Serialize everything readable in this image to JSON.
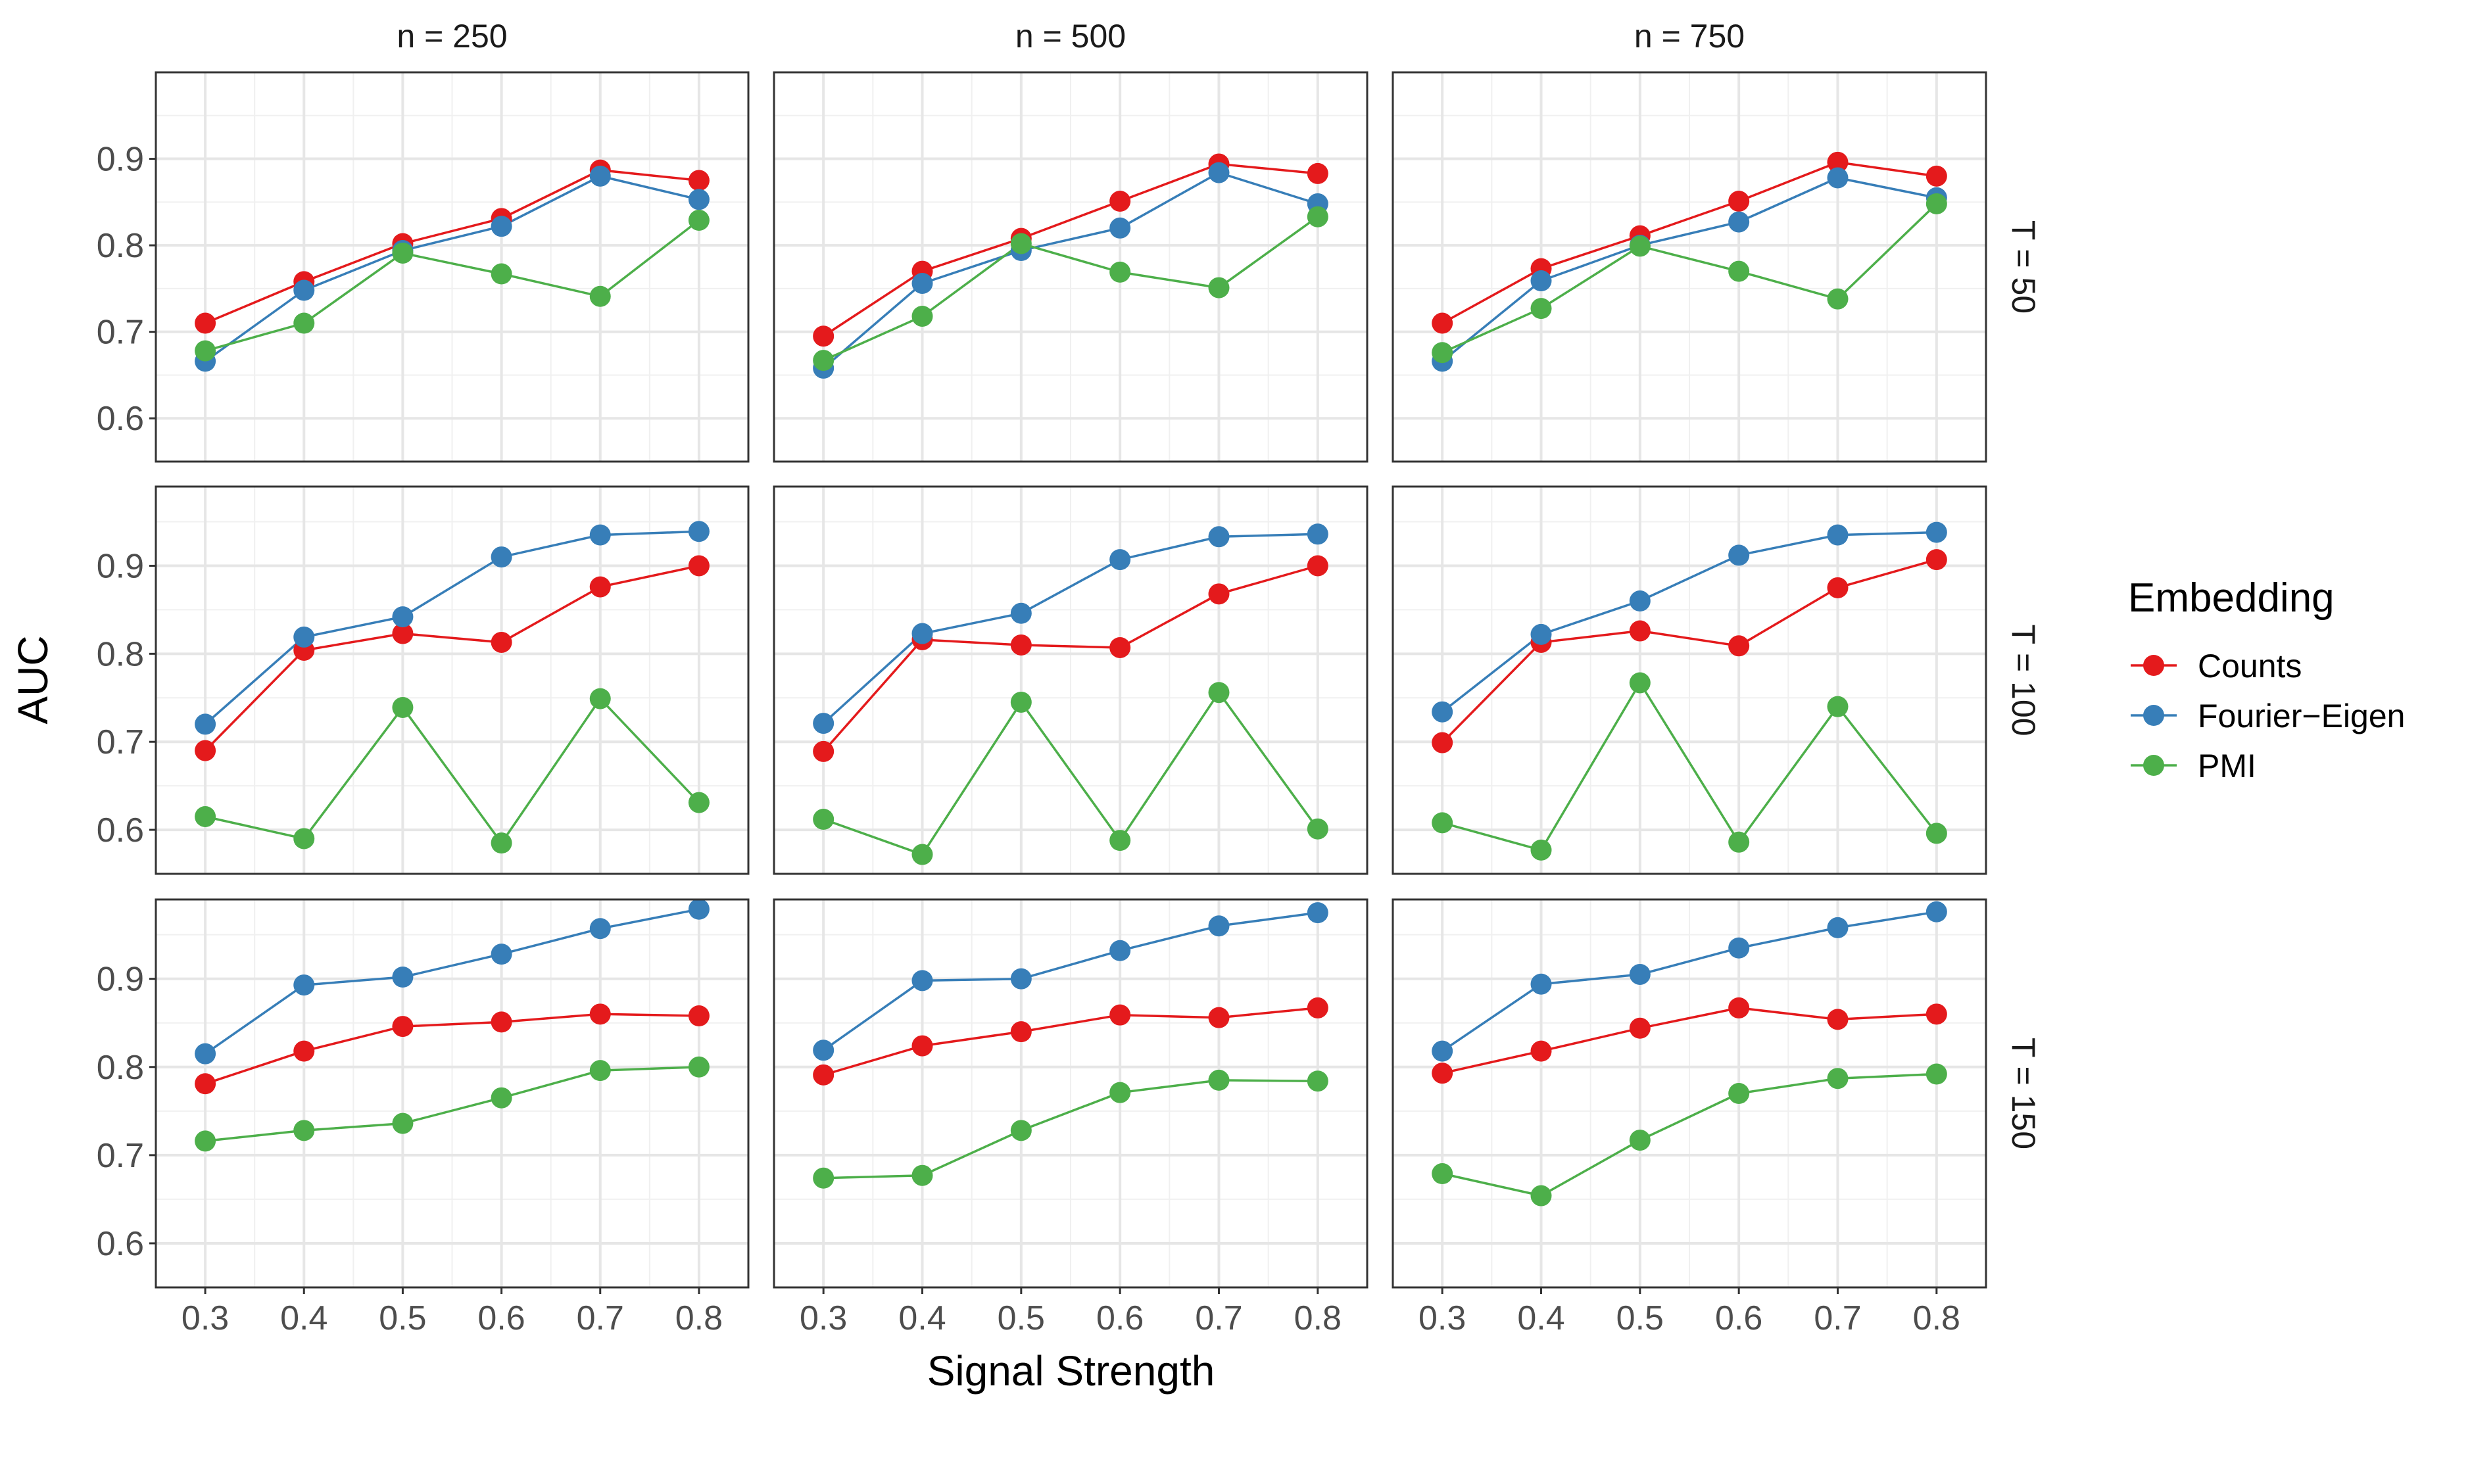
{
  "chart_data": {
    "type": "line",
    "xlabel": "Signal Strength",
    "ylabel": "AUC",
    "x": [
      0.3,
      0.4,
      0.5,
      0.6,
      0.7,
      0.8
    ],
    "x_tick_labels": [
      "0.3",
      "0.4",
      "0.5",
      "0.6",
      "0.7",
      "0.8"
    ],
    "xlim": [
      0.25,
      0.85
    ],
    "y_tick_labels": [
      "0.6",
      "0.7",
      "0.8",
      "0.9"
    ],
    "y_ticks": [
      0.6,
      0.7,
      0.8,
      0.9
    ],
    "grid": true,
    "markers": true,
    "legend": {
      "title": "Embedding",
      "position": "right",
      "entries": [
        {
          "name": "Counts",
          "color": "#e41a1c"
        },
        {
          "name": "Fourier−Eigen",
          "color": "#377eb8"
        },
        {
          "name": "PMI",
          "color": "#4daf4a"
        }
      ]
    },
    "facet_columns": [
      "n = 250",
      "n = 500",
      "n = 750"
    ],
    "facet_rows": [
      "T = 50",
      "T = 100",
      "T = 150"
    ],
    "row_ylims": [
      [
        0.55,
        1.0
      ],
      [
        0.55,
        0.99
      ],
      [
        0.55,
        0.99
      ]
    ],
    "panels": [
      {
        "col": "n = 250",
        "row": "T = 50",
        "series": [
          {
            "name": "Counts",
            "values": [
              0.71,
              0.758,
              0.802,
              0.831,
              0.887,
              0.875
            ]
          },
          {
            "name": "Fourier−Eigen",
            "values": [
              0.666,
              0.748,
              0.794,
              0.822,
              0.88,
              0.853
            ]
          },
          {
            "name": "PMI",
            "values": [
              0.678,
              0.71,
              0.791,
              0.767,
              0.741,
              0.829
            ]
          }
        ]
      },
      {
        "col": "n = 500",
        "row": "T = 50",
        "series": [
          {
            "name": "Counts",
            "values": [
              0.695,
              0.77,
              0.808,
              0.851,
              0.894,
              0.883
            ]
          },
          {
            "name": "Fourier−Eigen",
            "values": [
              0.658,
              0.756,
              0.794,
              0.82,
              0.884,
              0.848
            ]
          },
          {
            "name": "PMI",
            "values": [
              0.667,
              0.718,
              0.802,
              0.769,
              0.751,
              0.833
            ]
          }
        ]
      },
      {
        "col": "n = 750",
        "row": "T = 50",
        "series": [
          {
            "name": "Counts",
            "values": [
              0.71,
              0.773,
              0.811,
              0.851,
              0.896,
              0.88
            ]
          },
          {
            "name": "Fourier−Eigen",
            "values": [
              0.666,
              0.759,
              0.8,
              0.827,
              0.878,
              0.855
            ]
          },
          {
            "name": "PMI",
            "values": [
              0.676,
              0.727,
              0.799,
              0.77,
              0.738,
              0.848
            ]
          }
        ]
      },
      {
        "col": "n = 250",
        "row": "T = 100",
        "series": [
          {
            "name": "Counts",
            "values": [
              0.69,
              0.804,
              0.823,
              0.813,
              0.876,
              0.9
            ]
          },
          {
            "name": "Fourier−Eigen",
            "values": [
              0.72,
              0.819,
              0.842,
              0.91,
              0.935,
              0.939
            ]
          },
          {
            "name": "PMI",
            "values": [
              0.615,
              0.59,
              0.739,
              0.585,
              0.749,
              0.631
            ]
          }
        ]
      },
      {
        "col": "n = 500",
        "row": "T = 100",
        "series": [
          {
            "name": "Counts",
            "values": [
              0.689,
              0.816,
              0.81,
              0.807,
              0.868,
              0.9
            ]
          },
          {
            "name": "Fourier−Eigen",
            "values": [
              0.721,
              0.823,
              0.846,
              0.907,
              0.933,
              0.936
            ]
          },
          {
            "name": "PMI",
            "values": [
              0.612,
              0.572,
              0.745,
              0.588,
              0.756,
              0.601
            ]
          }
        ]
      },
      {
        "col": "n = 750",
        "row": "T = 100",
        "series": [
          {
            "name": "Counts",
            "values": [
              0.699,
              0.813,
              0.826,
              0.809,
              0.875,
              0.907
            ]
          },
          {
            "name": "Fourier−Eigen",
            "values": [
              0.734,
              0.822,
              0.86,
              0.912,
              0.935,
              0.938
            ]
          },
          {
            "name": "PMI",
            "values": [
              0.608,
              0.577,
              0.767,
              0.586,
              0.74,
              0.596
            ]
          }
        ]
      },
      {
        "col": "n = 250",
        "row": "T = 150",
        "series": [
          {
            "name": "Counts",
            "values": [
              0.781,
              0.818,
              0.846,
              0.851,
              0.86,
              0.858
            ]
          },
          {
            "name": "Fourier−Eigen",
            "values": [
              0.815,
              0.893,
              0.902,
              0.928,
              0.957,
              0.979
            ]
          },
          {
            "name": "PMI",
            "values": [
              0.716,
              0.728,
              0.736,
              0.765,
              0.796,
              0.8
            ]
          }
        ]
      },
      {
        "col": "n = 500",
        "row": "T = 150",
        "series": [
          {
            "name": "Counts",
            "values": [
              0.791,
              0.824,
              0.84,
              0.859,
              0.856,
              0.867
            ]
          },
          {
            "name": "Fourier−Eigen",
            "values": [
              0.819,
              0.898,
              0.9,
              0.932,
              0.96,
              0.975
            ]
          },
          {
            "name": "PMI",
            "values": [
              0.674,
              0.677,
              0.728,
              0.771,
              0.785,
              0.784
            ]
          }
        ]
      },
      {
        "col": "n = 750",
        "row": "T = 150",
        "series": [
          {
            "name": "Counts",
            "values": [
              0.793,
              0.818,
              0.844,
              0.867,
              0.854,
              0.86
            ]
          },
          {
            "name": "Fourier−Eigen",
            "values": [
              0.818,
              0.894,
              0.905,
              0.935,
              0.958,
              0.976
            ]
          },
          {
            "name": "PMI",
            "values": [
              0.679,
              0.654,
              0.717,
              0.77,
              0.787,
              0.792
            ]
          }
        ]
      }
    ]
  }
}
